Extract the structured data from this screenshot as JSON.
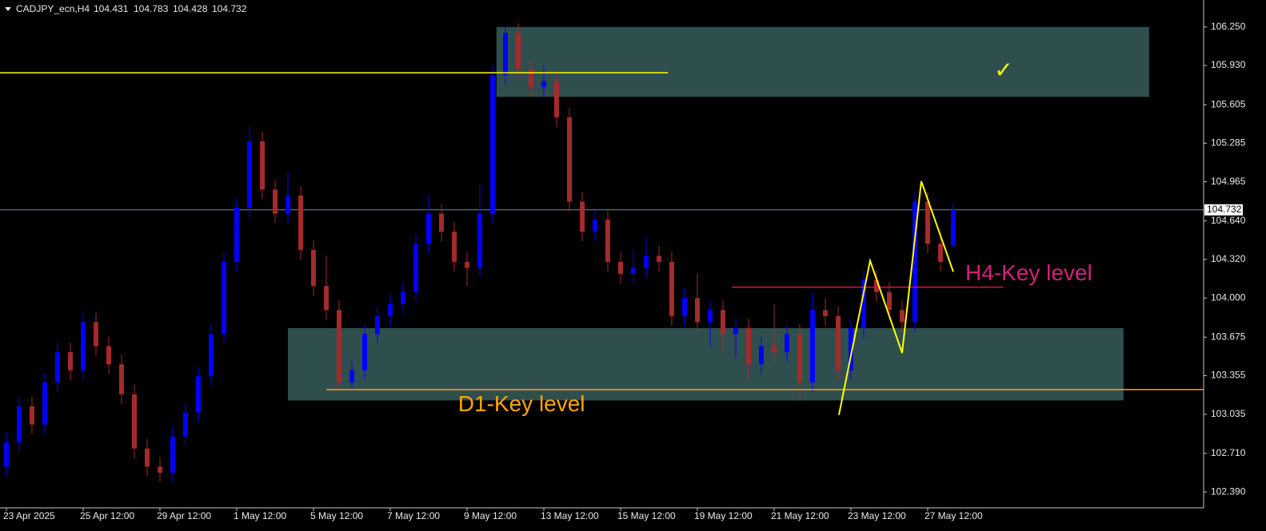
{
  "chart_data": {
    "type": "candlestick",
    "symbol": "CADJPY_ecn,H4",
    "up_color": "#0000ff",
    "down_color": "#a52a2a",
    "price_line_color": "#778899",
    "xlim": [
      -0.5,
      93.5625
    ],
    "ylim": [
      102.258,
      106.474
    ],
    "yticks": [
      {
        "value": 106.25,
        "label": "106.250"
      },
      {
        "value": 105.93,
        "label": "105.930"
      },
      105.605,
      105.285,
      104.965,
      {
        "value": 104.64,
        "label": "104.640"
      },
      {
        "value": 104.32,
        "label": "104.320"
      },
      {
        "value": 104,
        "label": "104.000"
      },
      103.675,
      103.355,
      103.035,
      {
        "value": 102.71,
        "label": "102.710"
      },
      {
        "value": 102.39,
        "label": "102.390"
      }
    ],
    "xticks": [
      {
        "value": 0,
        "label": "23 Apr 2025"
      },
      {
        "value": 6,
        "label": "25 Apr 12:00"
      },
      {
        "value": 12,
        "label": "29 Apr 12:00"
      },
      {
        "value": 18,
        "label": "1 May 12:00"
      },
      {
        "value": 24,
        "label": "5 May 12:00"
      },
      {
        "value": 30,
        "label": "7 May 12:00"
      },
      {
        "value": 36,
        "label": "9 May 12:00"
      },
      {
        "value": 42,
        "label": "13 May 12:00"
      },
      {
        "value": 48,
        "label": "15 May 12:00"
      },
      {
        "value": 54,
        "label": "19 May 12:00"
      },
      {
        "value": 60,
        "label": "21 May 12:00"
      },
      {
        "value": 66,
        "label": "23 May 12:00"
      },
      {
        "value": 72,
        "label": "27 May 12:00"
      }
    ],
    "candles": [
      [
        102.6,
        102.88,
        102.52,
        102.8
      ],
      [
        102.8,
        103.18,
        102.72,
        103.1
      ],
      [
        103.1,
        103.18,
        102.87,
        102.95
      ],
      [
        102.95,
        103.38,
        102.87,
        103.3
      ],
      [
        103.3,
        103.63,
        103.22,
        103.55
      ],
      [
        103.55,
        103.63,
        103.32,
        103.4
      ],
      [
        103.4,
        103.88,
        103.32,
        103.8
      ],
      [
        103.8,
        103.88,
        103.52,
        103.6
      ],
      [
        103.6,
        103.68,
        103.37,
        103.45
      ],
      [
        103.45,
        103.53,
        103.12,
        103.2
      ],
      [
        103.2,
        103.28,
        102.67,
        102.75
      ],
      [
        102.75,
        102.83,
        102.52,
        102.6
      ],
      [
        102.6,
        102.68,
        102.47,
        102.55
      ],
      [
        102.55,
        102.93,
        102.47,
        102.85
      ],
      [
        102.85,
        103.13,
        102.77,
        103.05
      ],
      [
        103.05,
        103.43,
        102.97,
        103.35
      ],
      [
        103.35,
        103.78,
        103.27,
        103.7
      ],
      [
        103.7,
        104.38,
        103.62,
        104.3
      ],
      [
        104.3,
        104.83,
        104.22,
        104.75
      ],
      [
        104.75,
        105.42,
        104.67,
        105.3
      ],
      [
        105.3,
        105.38,
        104.82,
        104.9
      ],
      [
        104.9,
        104.98,
        104.62,
        104.7
      ],
      [
        104.7,
        105.05,
        104.62,
        104.85
      ],
      [
        104.85,
        104.93,
        104.32,
        104.4
      ],
      [
        104.4,
        104.48,
        104.02,
        104.1
      ],
      [
        104.1,
        104.35,
        103.82,
        103.9
      ],
      [
        103.9,
        103.98,
        103.22,
        103.3
      ],
      [
        103.3,
        103.48,
        103.25,
        103.4
      ],
      [
        103.4,
        103.78,
        103.32,
        103.7
      ],
      [
        103.7,
        103.93,
        103.62,
        103.85
      ],
      [
        103.85,
        104.03,
        103.77,
        103.95
      ],
      [
        103.95,
        104.13,
        103.87,
        104.05
      ],
      [
        104.05,
        104.53,
        103.97,
        104.45
      ],
      [
        104.45,
        104.85,
        104.37,
        104.7
      ],
      [
        104.7,
        104.78,
        104.47,
        104.55
      ],
      [
        104.55,
        104.63,
        104.22,
        104.3
      ],
      [
        104.3,
        104.38,
        104.1,
        104.25
      ],
      [
        104.25,
        104.95,
        104.17,
        104.7
      ],
      [
        104.7,
        105.93,
        104.62,
        105.85
      ],
      [
        105.85,
        106.25,
        105.77,
        106.2
      ],
      [
        106.2,
        106.28,
        105.82,
        105.9
      ],
      [
        105.9,
        105.98,
        105.67,
        105.75
      ],
      [
        105.75,
        105.93,
        105.67,
        105.8
      ],
      [
        105.8,
        105.88,
        105.42,
        105.5
      ],
      [
        105.5,
        105.58,
        104.72,
        104.8
      ],
      [
        104.8,
        104.88,
        104.47,
        104.55
      ],
      [
        104.55,
        104.73,
        104.47,
        104.65
      ],
      [
        104.65,
        104.73,
        104.22,
        104.3
      ],
      [
        104.3,
        104.38,
        104.12,
        104.2
      ],
      [
        104.2,
        104.4,
        104.12,
        104.25
      ],
      [
        104.25,
        104.5,
        104.17,
        104.35
      ],
      [
        104.35,
        104.43,
        104.22,
        104.3
      ],
      [
        104.3,
        104.38,
        103.77,
        103.85
      ],
      [
        103.85,
        104.08,
        103.77,
        104.0
      ],
      [
        104.0,
        104.2,
        103.72,
        103.8
      ],
      [
        103.8,
        103.98,
        103.6,
        103.9
      ],
      [
        103.9,
        103.98,
        103.55,
        103.7
      ],
      [
        103.7,
        103.83,
        103.5,
        103.75
      ],
      [
        103.75,
        103.83,
        103.33,
        103.45
      ],
      [
        103.45,
        103.68,
        103.37,
        103.6
      ],
      [
        103.6,
        103.95,
        103.47,
        103.55
      ],
      [
        103.55,
        103.78,
        103.47,
        103.7
      ],
      [
        103.7,
        103.78,
        103.15,
        103.3
      ],
      [
        103.3,
        104.05,
        103.22,
        103.9
      ],
      [
        103.9,
        104.0,
        103.77,
        103.85
      ],
      [
        103.85,
        103.93,
        103.32,
        103.4
      ],
      [
        103.4,
        103.83,
        103.32,
        103.75
      ],
      [
        103.75,
        104.23,
        103.67,
        104.15
      ],
      [
        104.15,
        104.23,
        103.97,
        104.05
      ],
      [
        104.05,
        104.13,
        103.82,
        103.9
      ],
      [
        103.9,
        103.98,
        103.72,
        103.8
      ],
      [
        103.8,
        104.88,
        103.72,
        104.8
      ],
      [
        104.8,
        104.88,
        104.37,
        104.45
      ],
      [
        104.45,
        104.53,
        104.22,
        104.3
      ],
      [
        104.431,
        104.783,
        104.428,
        104.732
      ]
    ],
    "zones": [
      {
        "x": [
          38.3,
          89.3
        ],
        "y": [
          105.67,
          106.25
        ],
        "color": "#2f4f4f"
      },
      {
        "x": [
          22,
          87.3
        ],
        "y": [
          103.15,
          103.75
        ],
        "color": "#2f4f4f"
      }
    ],
    "levels": [
      {
        "x": [
          -0.5,
          51.7
        ],
        "y": 105.87,
        "color": "#ffff00"
      },
      {
        "x": [
          25,
          93.5625
        ],
        "y": 103.24,
        "color": "#ffa500"
      },
      {
        "x": [
          56.7,
          77.9
        ],
        "y": 104.09,
        "color": "#dc143c"
      }
    ],
    "zigzag": {
      "color": "#ffff00",
      "x": [
        65.06,
        67.5,
        70,
        71.5,
        74
      ],
      "y": [
        103.029,
        104.309,
        103.544,
        104.969,
        104.217
      ]
    },
    "labels": [
      {
        "text": "D1-Key level",
        "x": 35.3,
        "y": 103.108,
        "color": "#ffa500"
      },
      {
        "text": "H4-Key level",
        "x": 74.94,
        "y": 104.197,
        "color": "#d4207a"
      },
      {
        "text": "✓",
        "x": 77.2,
        "y": 105.88,
        "color": "#ffff00"
      }
    ]
  }
}
